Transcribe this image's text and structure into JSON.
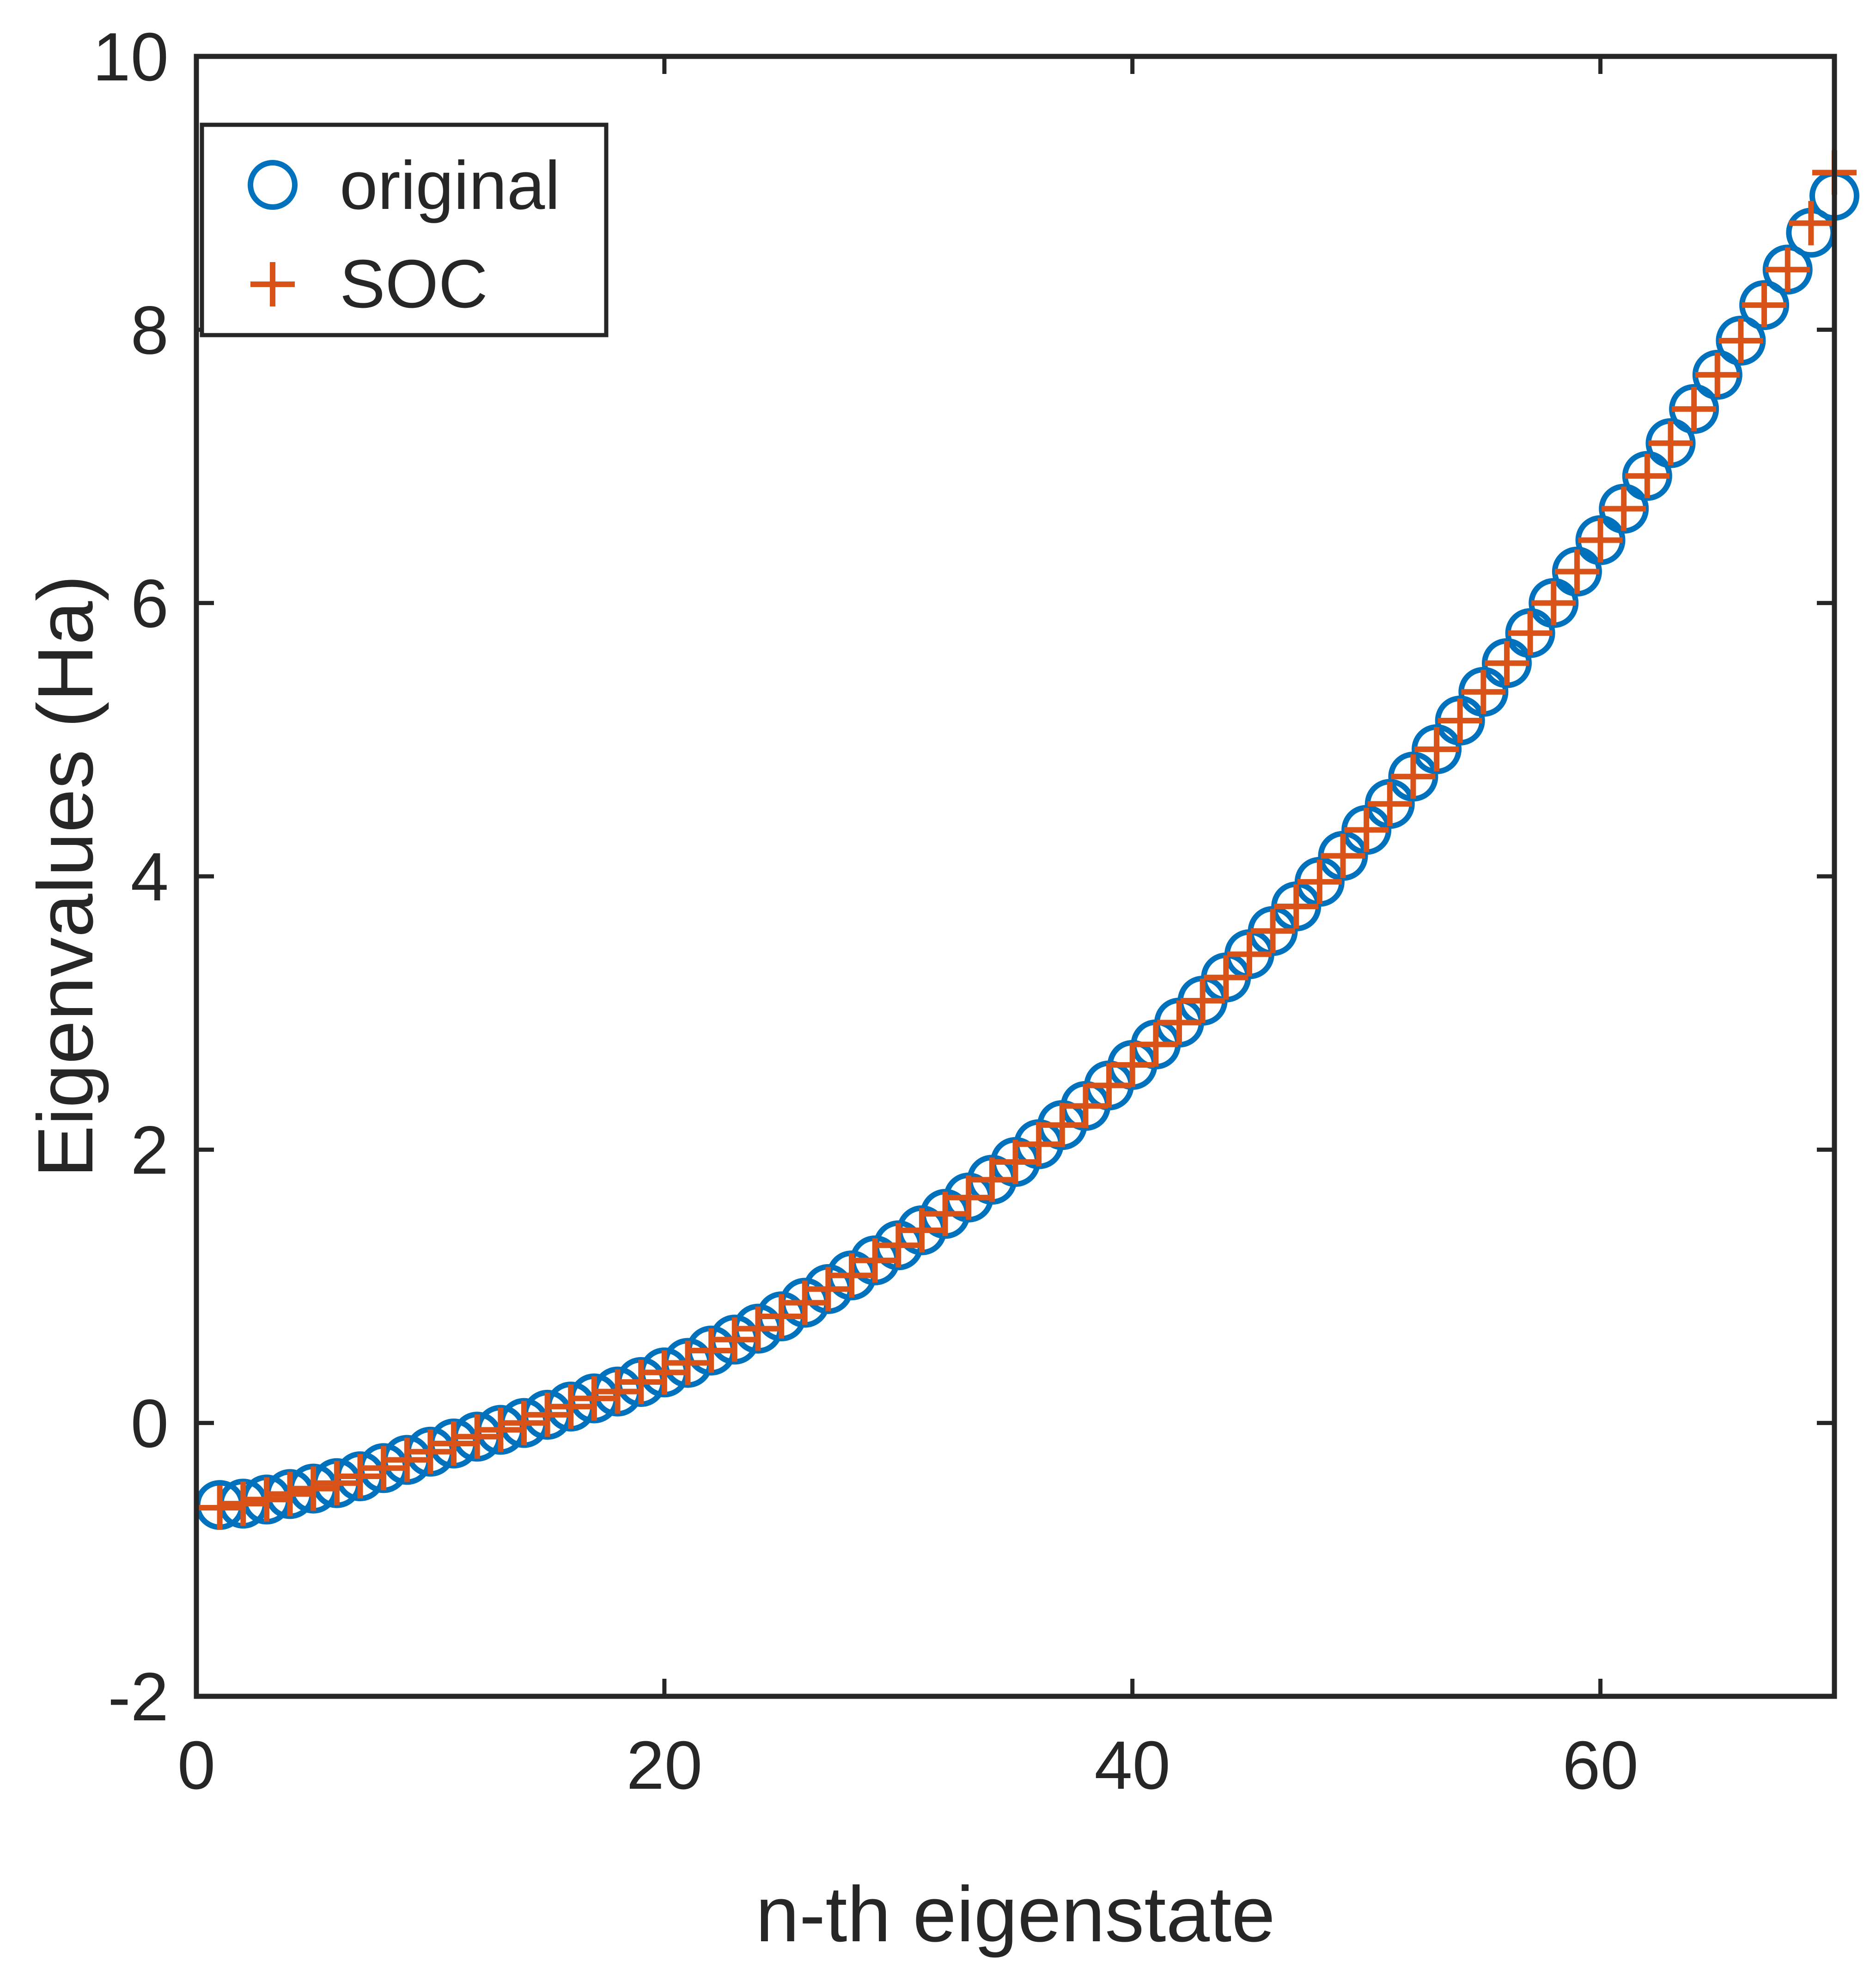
{
  "chart_data": {
    "type": "scatter",
    "title": "",
    "xlabel": "n-th eigenstate",
    "ylabel": "Eigenvalues (Ha)",
    "xlim": [
      0,
      70
    ],
    "ylim": [
      -2,
      10
    ],
    "xticks": [
      0,
      20,
      40,
      60
    ],
    "yticks": [
      -2,
      0,
      2,
      4,
      6,
      8,
      10
    ],
    "xtick_labels": [
      "0",
      "20",
      "40",
      "60"
    ],
    "ytick_labels": [
      "-2",
      "0",
      "2",
      "4",
      "6",
      "8",
      "10"
    ],
    "grid": false,
    "legend_position": "top-left",
    "x": [
      1,
      2,
      3,
      4,
      5,
      6,
      7,
      8,
      9,
      10,
      11,
      12,
      13,
      14,
      15,
      16,
      17,
      18,
      19,
      20,
      21,
      22,
      23,
      24,
      25,
      26,
      27,
      28,
      29,
      30,
      31,
      32,
      33,
      34,
      35,
      36,
      37,
      38,
      39,
      40,
      41,
      42,
      43,
      44,
      45,
      46,
      47,
      48,
      49,
      50,
      51,
      52,
      53,
      54,
      55,
      56,
      57,
      58,
      59,
      60,
      61,
      62,
      63,
      64,
      65,
      66,
      67,
      68,
      69,
      70
    ],
    "series": [
      {
        "name": "original",
        "marker": "circle",
        "color": "#0072BD",
        "values": [
          -0.6,
          -0.59,
          -0.56,
          -0.52,
          -0.48,
          -0.44,
          -0.39,
          -0.33,
          -0.27,
          -0.21,
          -0.15,
          -0.1,
          -0.05,
          0.0,
          0.06,
          0.12,
          0.18,
          0.23,
          0.3,
          0.37,
          0.44,
          0.53,
          0.61,
          0.69,
          0.78,
          0.88,
          0.98,
          1.08,
          1.19,
          1.3,
          1.41,
          1.53,
          1.65,
          1.78,
          1.91,
          2.04,
          2.18,
          2.32,
          2.47,
          2.62,
          2.77,
          2.93,
          3.09,
          3.26,
          3.43,
          3.6,
          3.78,
          3.96,
          4.15,
          4.34,
          4.53,
          4.73,
          4.93,
          5.14,
          5.35,
          5.56,
          5.78,
          6.0,
          6.23,
          6.46,
          6.69,
          6.93,
          7.17,
          7.42,
          7.67,
          7.92,
          8.18,
          8.44,
          8.71,
          8.98
        ]
      },
      {
        "name": "SOC",
        "marker": "plus",
        "color": "#D95319",
        "values": [
          -0.62,
          -0.59,
          -0.56,
          -0.52,
          -0.48,
          -0.44,
          -0.39,
          -0.33,
          -0.27,
          -0.21,
          -0.15,
          -0.1,
          -0.05,
          0.0,
          0.06,
          0.12,
          0.18,
          0.23,
          0.3,
          0.37,
          0.44,
          0.53,
          0.61,
          0.69,
          0.78,
          0.88,
          0.98,
          1.08,
          1.19,
          1.3,
          1.41,
          1.53,
          1.65,
          1.78,
          1.91,
          2.04,
          2.18,
          2.32,
          2.47,
          2.62,
          2.77,
          2.93,
          3.09,
          3.26,
          3.43,
          3.6,
          3.78,
          3.96,
          4.15,
          4.34,
          4.53,
          4.73,
          4.93,
          5.14,
          5.35,
          5.56,
          5.78,
          6.0,
          6.23,
          6.46,
          6.69,
          6.93,
          7.17,
          7.42,
          7.67,
          7.92,
          8.18,
          8.44,
          8.78,
          9.15
        ]
      }
    ]
  }
}
